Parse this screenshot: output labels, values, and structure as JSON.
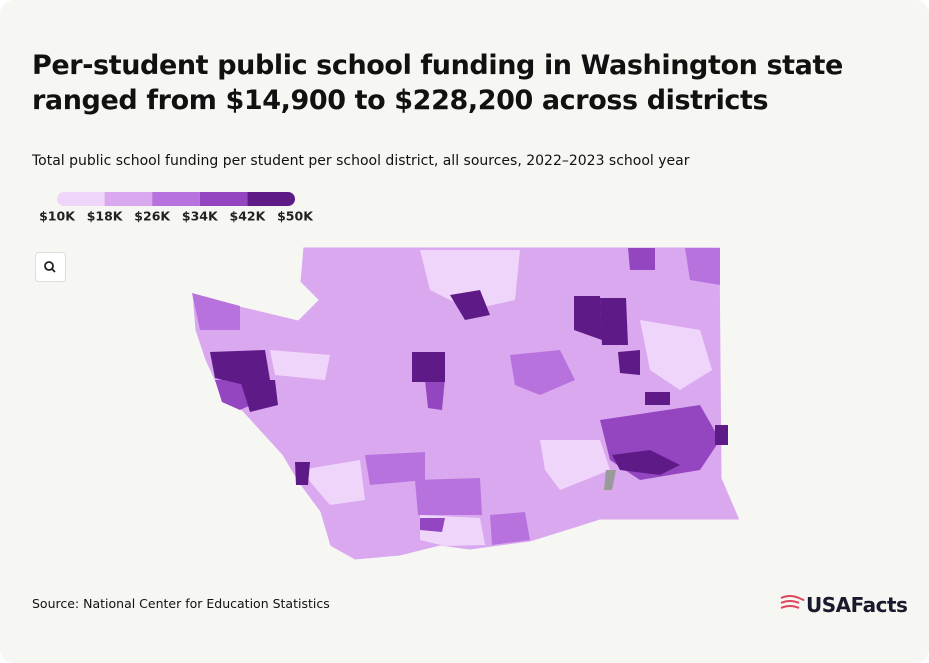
{
  "chart_data": {
    "type": "choropleth",
    "title": "Per-student public school funding in Washington state ranged from $14,900 to $228,200 across districts",
    "subtitle": "Total public school funding per student per school district, all sources, 2022–2023 school year",
    "legend": {
      "ticks": [
        {
          "value": 10000,
          "label": "$10K"
        },
        {
          "value": 18000,
          "label": "$18K"
        },
        {
          "value": 26000,
          "label": "$26K"
        },
        {
          "value": 34000,
          "label": "$34K"
        },
        {
          "value": 42000,
          "label": "$42K"
        },
        {
          "value": 50000,
          "label": "$50K"
        }
      ],
      "colors": [
        "#f0d5fb",
        "#d9a8ef",
        "#b872de",
        "#9445c0",
        "#5e1a86"
      ]
    },
    "source": "Source: National Center for Education Statistics",
    "logo": "USAFacts"
  }
}
